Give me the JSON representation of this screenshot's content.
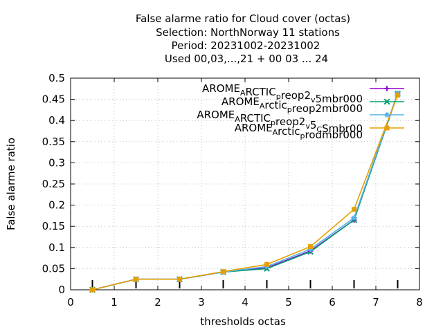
{
  "chart_data": {
    "type": "line",
    "title_lines": [
      "False alarme ratio  for Cloud cover (octas)",
      "Selection: NorthNorway      11 stations",
      "Period: 20231002-20231002",
      "Used  00,03,...,21  + 00 03 ... 24"
    ],
    "xlabel": "thresholds octas",
    "ylabel": "False alarme ratio",
    "xlim": [
      0,
      8
    ],
    "ylim": [
      0,
      0.5
    ],
    "xticks": [
      0,
      1,
      2,
      3,
      4,
      5,
      6,
      7,
      8
    ],
    "yticks": [
      0,
      0.05,
      0.1,
      0.15,
      0.2,
      0.25,
      0.3,
      0.35,
      0.4,
      0.45,
      0.5
    ],
    "grid": true,
    "legend_position": "top-right",
    "series": [
      {
        "name": "AROME_ARCTIC_preop2_v5mbr000",
        "legend_parts": [
          [
            "AROME",
            ""
          ],
          [
            "A",
            "sub"
          ],
          [
            "RCTIC",
            ""
          ],
          [
            "p",
            "sub"
          ],
          [
            "reop2",
            ""
          ],
          [
            "v",
            "sub"
          ],
          [
            "5mbr000",
            ""
          ]
        ],
        "color": "#9400d3",
        "marker": "plus",
        "x": [
          0.5,
          1.5,
          2.5,
          3.5,
          4.5,
          5.5,
          6.5,
          7.5
        ],
        "y": [
          0.0,
          0.025,
          0.025,
          0.042,
          0.052,
          0.092,
          0.165,
          0.463
        ]
      },
      {
        "name": "AROME_Arctic_preop2mbr000",
        "legend_parts": [
          [
            "AROME",
            ""
          ],
          [
            "A",
            "sub"
          ],
          [
            "rctic",
            ""
          ],
          [
            "p",
            "sub"
          ],
          [
            "reop2mbr000",
            ""
          ]
        ],
        "color": "#009e73",
        "marker": "x",
        "x": [
          0.5,
          1.5,
          2.5,
          3.5,
          4.5,
          5.5,
          6.5,
          7.5
        ],
        "y": [
          0.0,
          0.025,
          0.025,
          0.042,
          0.05,
          0.09,
          0.165,
          0.463
        ]
      },
      {
        "name": "AROME_ARCTIC_preop2_v5_CSmbr00",
        "legend_parts": [
          [
            "AROME",
            ""
          ],
          [
            "A",
            "sub"
          ],
          [
            "RCTIC",
            ""
          ],
          [
            "p",
            "sub"
          ],
          [
            "reop2",
            ""
          ],
          [
            "v",
            "sub"
          ],
          [
            "5",
            ""
          ],
          [
            "C",
            "sub"
          ],
          [
            "Smbr00",
            ""
          ]
        ],
        "color": "#56b4e9",
        "marker": "star",
        "x": [
          0.5,
          1.5,
          2.5,
          3.5,
          4.5,
          5.5,
          6.5,
          7.5
        ],
        "y": [
          0.0,
          0.025,
          0.025,
          0.042,
          0.055,
          0.096,
          0.17,
          0.465
        ]
      },
      {
        "name": "AROME_Arctic_prodmbr000",
        "legend_parts": [
          [
            "AROME",
            ""
          ],
          [
            "A",
            "sub"
          ],
          [
            "rctic",
            ""
          ],
          [
            "p",
            "sub"
          ],
          [
            "rodmbr000",
            ""
          ]
        ],
        "color": "#e69f00",
        "marker": "square",
        "x": [
          0.5,
          1.5,
          2.5,
          3.5,
          4.5,
          5.5,
          6.5,
          7.5
        ],
        "y": [
          0.0,
          0.025,
          0.025,
          0.043,
          0.06,
          0.102,
          0.19,
          0.46
        ]
      }
    ],
    "count_ticks_x": [
      0.5,
      1.5,
      2.5,
      3.5,
      4.5,
      5.5,
      6.5,
      7.5
    ]
  }
}
